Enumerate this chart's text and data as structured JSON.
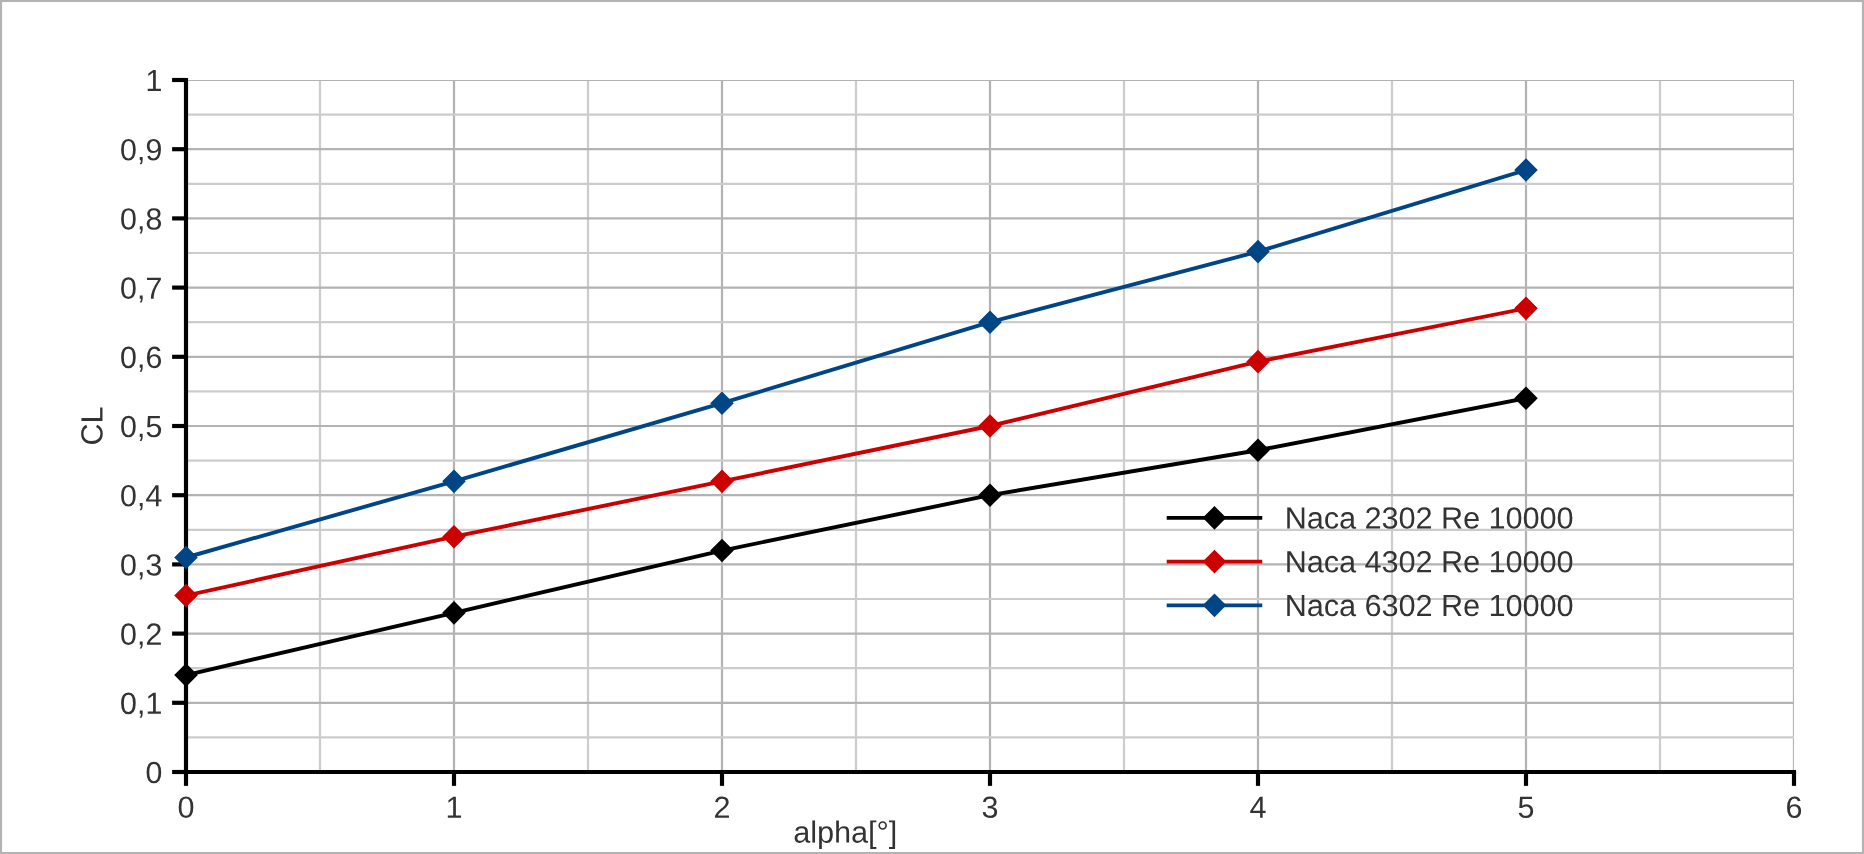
{
  "chart_data": {
    "type": "line",
    "xlabel": "alpha[°]",
    "ylabel": "CL",
    "x": [
      0,
      1,
      2,
      3,
      4,
      5
    ],
    "series": [
      {
        "name": "Naca 2302 Re 10000",
        "color": "#000000",
        "values": [
          0.14,
          0.23,
          0.32,
          0.4,
          0.465,
          0.54
        ]
      },
      {
        "name": "Naca 4302 Re 10000",
        "color": "#cc0000",
        "values": [
          0.255,
          0.34,
          0.42,
          0.5,
          0.593,
          0.67
        ]
      },
      {
        "name": "Naca 6302 Re 10000",
        "color": "#004586",
        "values": [
          0.31,
          0.42,
          0.533,
          0.65,
          0.752,
          0.87
        ]
      }
    ],
    "xlim": [
      0,
      6
    ],
    "xticks": [
      0,
      1,
      2,
      3,
      4,
      5,
      6
    ],
    "ylim": [
      0,
      1
    ],
    "yticks": [
      {
        "value": 0,
        "label": "0"
      },
      {
        "value": 0.1,
        "label": "0,1"
      },
      {
        "value": 0.2,
        "label": "0,2"
      },
      {
        "value": 0.3,
        "label": "0,3"
      },
      {
        "value": 0.4,
        "label": "0,4"
      },
      {
        "value": 0.5,
        "label": "0,5"
      },
      {
        "value": 0.6,
        "label": "0,6"
      },
      {
        "value": 0.7,
        "label": "0,7"
      },
      {
        "value": 0.8,
        "label": "0,8"
      },
      {
        "value": 0.9,
        "label": "0,9"
      },
      {
        "value": 1,
        "label": "1"
      }
    ],
    "grid": true,
    "legend": "right",
    "marker": "diamond",
    "line_style": "solid"
  }
}
